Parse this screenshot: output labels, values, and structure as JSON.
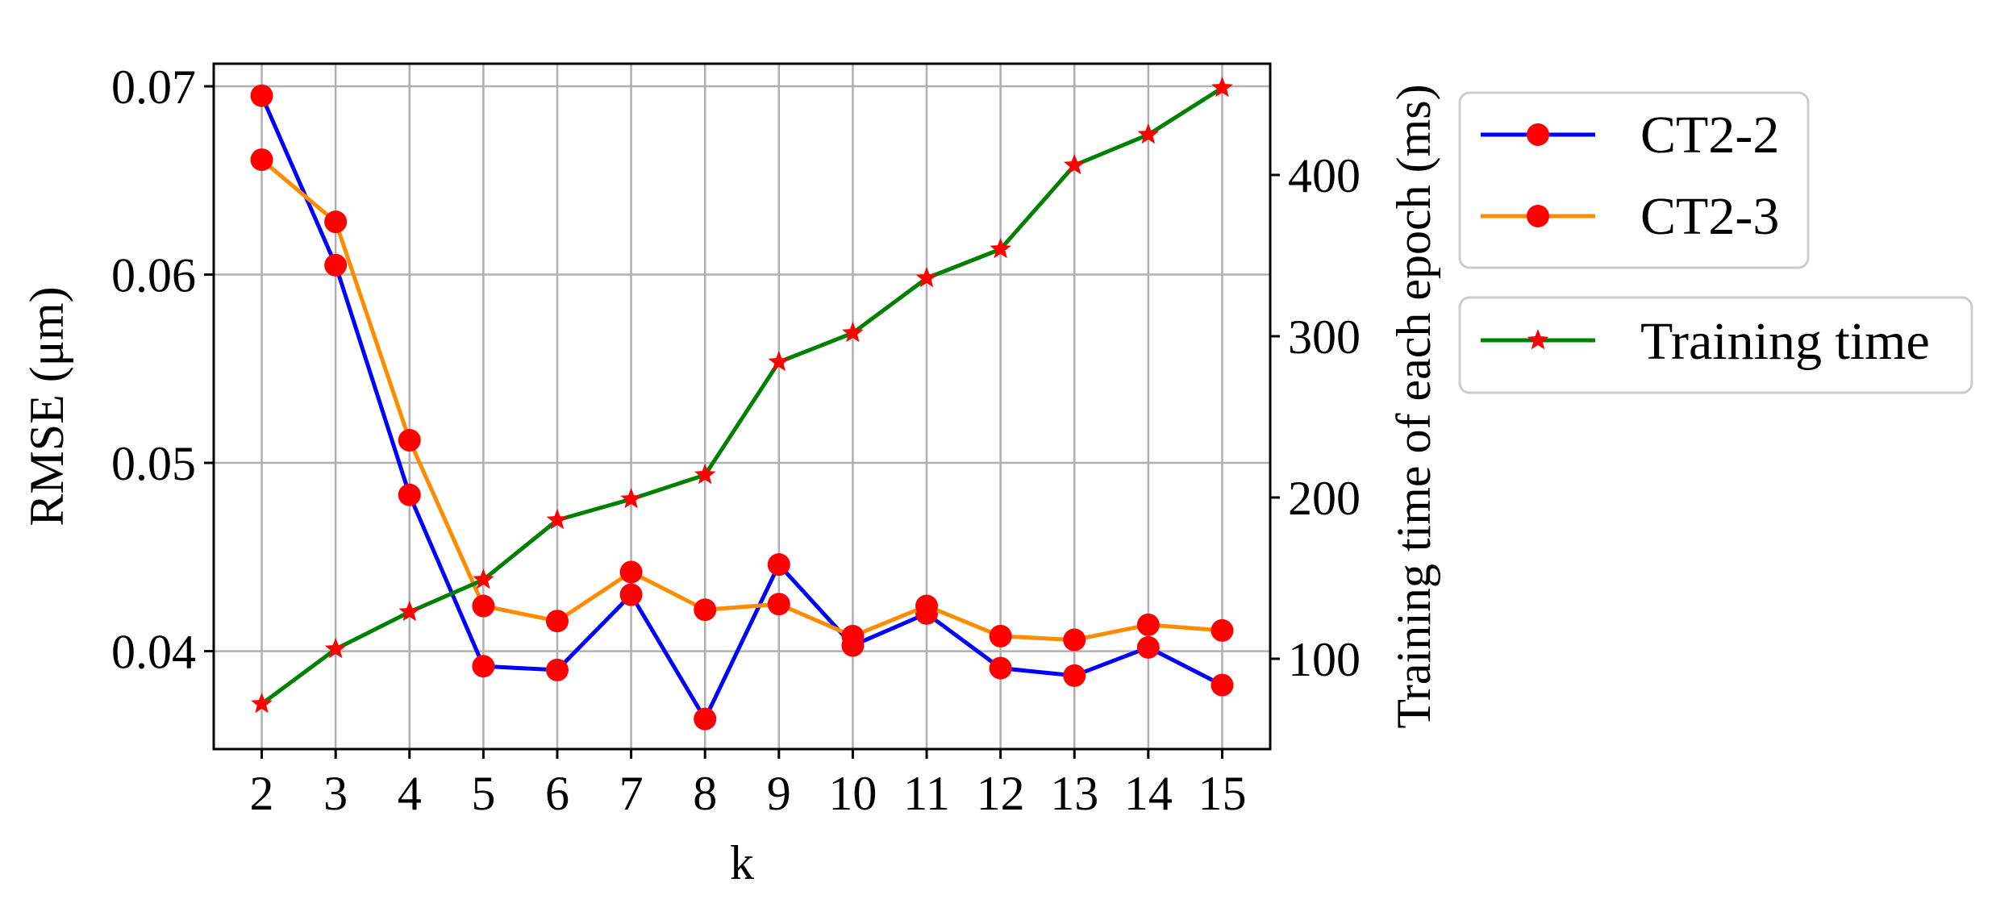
{
  "chart_data": {
    "type": "line",
    "title": "",
    "xlabel": "k",
    "ylabel_left": "RMSE (μm)",
    "ylabel_right": "Training time of each epoch (ms)",
    "x": [
      2,
      3,
      4,
      5,
      6,
      7,
      8,
      9,
      10,
      11,
      12,
      13,
      14,
      15
    ],
    "x_tick_labels": [
      "2",
      "3",
      "4",
      "5",
      "6",
      "7",
      "8",
      "9",
      "10",
      "11",
      "12",
      "13",
      "14",
      "15"
    ],
    "xlim": [
      1.35,
      15.65
    ],
    "ylim_left": [
      0.0348,
      0.0712
    ],
    "ylim_right": [
      44,
      469
    ],
    "y_ticks_left": [
      0.04,
      0.05,
      0.06,
      0.07
    ],
    "y_tick_labels_left": [
      "0.04",
      "0.05",
      "0.06",
      "0.07"
    ],
    "y_ticks_right": [
      100,
      200,
      300,
      400
    ],
    "y_tick_labels_right": [
      "100",
      "200",
      "300",
      "400"
    ],
    "grid": true,
    "legend_placement": "outside-right",
    "series": [
      {
        "name": "CT2-2",
        "axis": "left",
        "color": "#0000ff",
        "marker": "circle",
        "marker_color": "#ff0000",
        "values": [
          0.0695,
          0.0605,
          0.0483,
          0.0392,
          0.039,
          0.043,
          0.0364,
          0.0446,
          0.0403,
          0.042,
          0.0391,
          0.0387,
          0.0402,
          0.0382
        ]
      },
      {
        "name": "CT2-3",
        "axis": "left",
        "color": "#ff8c00",
        "marker": "circle",
        "marker_color": "#ff0000",
        "values": [
          0.0661,
          0.0628,
          0.0512,
          0.0424,
          0.0416,
          0.0442,
          0.0422,
          0.0425,
          0.0408,
          0.0424,
          0.0408,
          0.0406,
          0.0414,
          0.0411
        ]
      },
      {
        "name": "Training time",
        "axis": "right",
        "color": "#008000",
        "marker": "star",
        "marker_color": "#ff0000",
        "values": [
          72,
          106,
          129,
          149,
          186,
          199,
          214,
          284,
          302,
          336,
          354,
          406,
          425,
          454
        ]
      }
    ]
  }
}
